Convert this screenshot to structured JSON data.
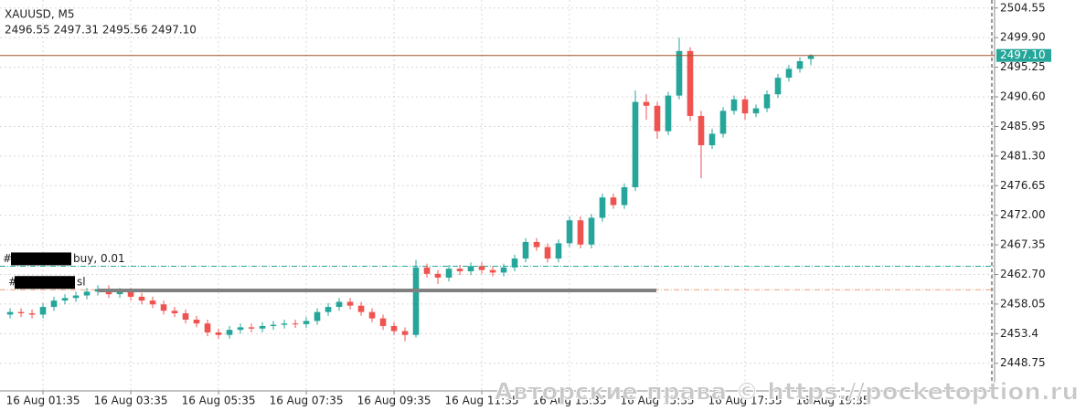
{
  "chart_data": {
    "type": "candlestick",
    "title": "XAUUSD, M5",
    "subtitle": "2496.55 2497.31 2495.56 2497.10",
    "up_color": "#26a69a",
    "down_color": "#ef5350",
    "open": [
      2456.4,
      2456.8,
      2456.6,
      2456.4,
      2457.6,
      2458.6,
      2459.0,
      2459.4,
      2460.0,
      2460.4,
      2459.6,
      2460.0,
      2459.2,
      2458.6,
      2458.0,
      2457.0,
      2456.6,
      2455.6,
      2455.0,
      2453.6,
      2453.2,
      2454.0,
      2454.4,
      2454.2,
      2454.6,
      2454.8,
      2455.0,
      2454.9,
      2455.4,
      2456.8,
      2457.6,
      2458.4,
      2457.8,
      2456.8,
      2455.8,
      2454.6,
      2453.8,
      2453.2,
      2463.8,
      2462.8,
      2462.2,
      2463.6,
      2463.2,
      2464.0,
      2463.4,
      2463.0,
      2463.8,
      2465.2,
      2467.8,
      2467.0,
      2465.2,
      2467.6,
      2471.2,
      2467.4,
      2471.6,
      2474.8,
      2473.6,
      2476.4,
      2489.8,
      2489.2,
      2485.2,
      2490.8,
      2497.8,
      2487.6,
      2483.0,
      2484.8,
      2488.4,
      2490.2,
      2488.0,
      2488.8,
      2491.0,
      2493.6,
      2495.0,
      2496.55
    ],
    "high": [
      2457.4,
      2457.4,
      2457.2,
      2458.2,
      2459.2,
      2459.6,
      2460.0,
      2460.6,
      2461.0,
      2461.0,
      2460.6,
      2460.6,
      2459.8,
      2459.2,
      2458.6,
      2457.6,
      2457.2,
      2456.2,
      2455.6,
      2454.2,
      2454.6,
      2455.0,
      2455.0,
      2455.2,
      2455.4,
      2455.6,
      2455.6,
      2456.0,
      2457.4,
      2458.2,
      2459.0,
      2459.0,
      2458.4,
      2457.4,
      2456.4,
      2455.2,
      2454.4,
      2465.0,
      2464.4,
      2463.4,
      2464.2,
      2464.2,
      2464.6,
      2464.6,
      2464.0,
      2464.4,
      2465.8,
      2468.4,
      2468.4,
      2467.6,
      2468.2,
      2471.8,
      2471.8,
      2472.2,
      2475.4,
      2475.4,
      2477.0,
      2491.6,
      2491.0,
      2489.8,
      2491.4,
      2499.9,
      2498.4,
      2488.4,
      2485.6,
      2489.0,
      2490.8,
      2490.8,
      2489.4,
      2491.6,
      2494.2,
      2495.6,
      2496.8,
      2497.31
    ],
    "low": [
      2455.8,
      2456.0,
      2455.8,
      2455.8,
      2457.0,
      2458.0,
      2458.4,
      2458.8,
      2459.4,
      2459.0,
      2459.0,
      2458.6,
      2458.0,
      2457.4,
      2456.4,
      2456.0,
      2455.0,
      2454.4,
      2453.0,
      2452.6,
      2452.6,
      2453.4,
      2453.6,
      2453.6,
      2454.0,
      2454.2,
      2454.3,
      2454.3,
      2454.8,
      2456.2,
      2457.0,
      2457.2,
      2456.2,
      2455.2,
      2454.0,
      2453.2,
      2452.2,
      2452.8,
      2462.2,
      2461.2,
      2461.6,
      2462.6,
      2462.6,
      2462.8,
      2462.4,
      2462.4,
      2463.2,
      2464.6,
      2466.4,
      2464.6,
      2464.6,
      2467.0,
      2466.8,
      2466.8,
      2471.0,
      2473.0,
      2473.0,
      2475.8,
      2487.0,
      2484.0,
      2484.6,
      2490.2,
      2486.8,
      2477.8,
      2482.4,
      2484.2,
      2487.8,
      2487.0,
      2487.4,
      2488.2,
      2490.4,
      2493.0,
      2494.4,
      2495.56
    ],
    "close": [
      2456.8,
      2456.6,
      2456.4,
      2457.6,
      2458.6,
      2459.0,
      2459.4,
      2460.0,
      2460.4,
      2459.6,
      2460.0,
      2459.2,
      2458.6,
      2458.0,
      2457.0,
      2456.6,
      2455.6,
      2455.0,
      2453.6,
      2453.2,
      2454.0,
      2454.4,
      2454.2,
      2454.6,
      2454.8,
      2455.0,
      2454.9,
      2455.4,
      2456.8,
      2457.6,
      2458.4,
      2457.8,
      2456.8,
      2455.8,
      2454.6,
      2453.8,
      2453.2,
      2463.8,
      2462.8,
      2462.2,
      2463.6,
      2463.2,
      2464.0,
      2463.4,
      2463.0,
      2463.8,
      2465.2,
      2467.8,
      2467.0,
      2465.2,
      2467.6,
      2471.2,
      2467.4,
      2471.6,
      2474.8,
      2473.6,
      2476.4,
      2489.8,
      2489.2,
      2485.2,
      2490.8,
      2497.8,
      2487.6,
      2483.0,
      2484.8,
      2488.4,
      2490.2,
      2488.0,
      2488.8,
      2491.0,
      2493.6,
      2495.0,
      2496.2,
      2497.1
    ],
    "xlim": [
      -0.92,
      89.75
    ],
    "xticks": [
      {
        "value": 3,
        "label": "16 Aug 01:35"
      },
      {
        "value": 11,
        "label": "16 Aug 03:35"
      },
      {
        "value": 19,
        "label": "16 Aug 05:35"
      },
      {
        "value": 27,
        "label": "16 Aug 07:35"
      },
      {
        "value": 35,
        "label": "16 Aug 09:35"
      },
      {
        "value": 43,
        "label": "16 Aug 11:35"
      },
      {
        "value": 51,
        "label": "16 Aug 13:35"
      },
      {
        "value": 59,
        "label": "16 Aug 15:35"
      },
      {
        "value": 67,
        "label": "16 Aug 17:35"
      },
      {
        "value": 75,
        "label": "16 Aug 19:35"
      }
    ],
    "ylim": [
      2444.41,
      2505.81
    ],
    "yticks": [
      2504.55,
      {
        "value": 2499.9,
        "label": "2499.90"
      },
      2495.25,
      {
        "value": 2490.6,
        "label": "2490.60"
      },
      2485.95,
      {
        "value": 2481.3,
        "label": "2481.30"
      },
      2476.65,
      {
        "value": 2472,
        "label": "2472.00"
      },
      2467.35,
      {
        "value": 2462.7,
        "label": "2462.70"
      },
      2458.05,
      2453.4,
      2448.75
    ],
    "grid": true,
    "price_line": {
      "value": 2497.1,
      "label": "2497.10",
      "color": "#a0522d",
      "tag_color": "#26a69a"
    },
    "orders": [
      {
        "prefix": "#",
        "label": "buy, 0.01",
        "price": 2464.0,
        "color": "#26a69a"
      },
      {
        "prefix": "#",
        "label": "sl",
        "price": 2460.3,
        "color": "#e8a27c"
      }
    ],
    "watermark": "Авторские права © https://pocketoption.ru"
  }
}
